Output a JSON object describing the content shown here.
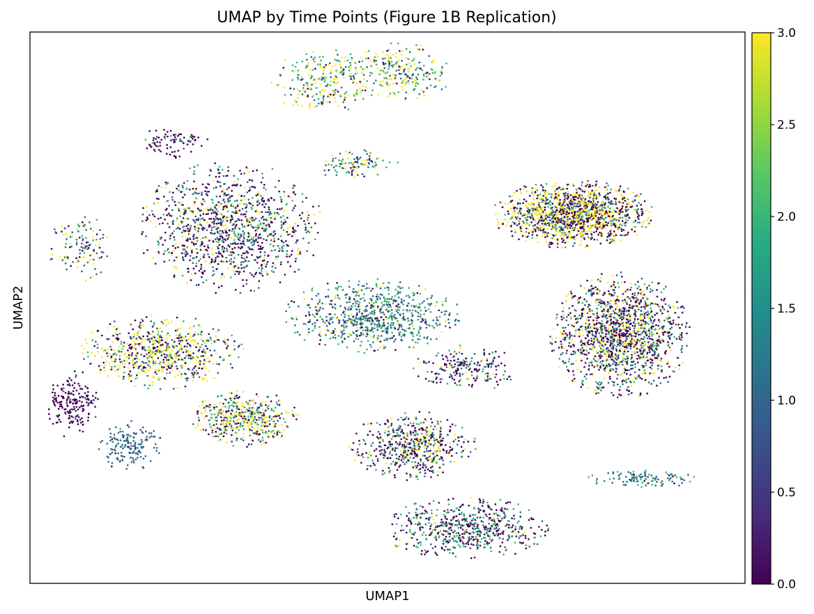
{
  "chart_data": {
    "type": "scatter",
    "title": "UMAP by Time Points (Figure 1B Replication)",
    "xlabel": "UMAP1",
    "ylabel": "UMAP2",
    "x_ticks": "none",
    "y_ticks": "none",
    "grid": false,
    "legend": "none",
    "xlim": [
      -10,
      10
    ],
    "ylim": [
      -10,
      10
    ],
    "colorbar": {
      "label": "",
      "range": [
        0.0,
        3.0
      ],
      "ticks": [
        0.0,
        0.5,
        1.0,
        1.5,
        2.0,
        2.5,
        3.0
      ],
      "tick_labels": [
        "0.0",
        "0.5",
        "1.0",
        "1.5",
        "2.0",
        "2.5",
        "3.0"
      ],
      "colormap": "viridis",
      "colormap_stops": [
        "#440154",
        "#472c7a",
        "#3b518b",
        "#2c718e",
        "#21908d",
        "#27ad81",
        "#5cc863",
        "#aadc32",
        "#fde725"
      ]
    },
    "clusters": [
      {
        "id": "top-loop",
        "cx": -1.8,
        "cy": 8.2,
        "rx": 1.4,
        "ry": 1.2,
        "count": 240,
        "mix": [
          0.08,
          0.2,
          0.32,
          0.4
        ]
      },
      {
        "id": "top-right-top",
        "cx": 0.2,
        "cy": 8.5,
        "rx": 1.6,
        "ry": 1.1,
        "count": 260,
        "mix": [
          0.08,
          0.2,
          0.32,
          0.4
        ]
      },
      {
        "id": "small-mid-top",
        "cx": -0.9,
        "cy": 5.2,
        "rx": 1.2,
        "ry": 0.5,
        "count": 110,
        "mix": [
          0.1,
          0.3,
          0.45,
          0.15
        ]
      },
      {
        "id": "purple-arc",
        "cx": -6.0,
        "cy": 6.0,
        "rx": 1.0,
        "ry": 0.55,
        "count": 85,
        "mix": [
          0.8,
          0.15,
          0.05,
          0.0
        ]
      },
      {
        "id": "left-big-oval",
        "cx": -4.4,
        "cy": 2.9,
        "rx": 2.5,
        "ry": 2.3,
        "count": 1150,
        "mix": [
          0.45,
          0.25,
          0.17,
          0.13
        ]
      },
      {
        "id": "far-left-strip",
        "cx": -8.6,
        "cy": 2.2,
        "rx": 0.9,
        "ry": 1.2,
        "count": 120,
        "mix": [
          0.15,
          0.45,
          0.1,
          0.3
        ]
      },
      {
        "id": "right-top-blob",
        "cx": 5.2,
        "cy": 3.4,
        "rx": 2.2,
        "ry": 1.2,
        "count": 1400,
        "mix": [
          0.36,
          0.12,
          0.15,
          0.37
        ]
      },
      {
        "id": "right-bottom-blob",
        "cx": 6.5,
        "cy": -1.0,
        "rx": 1.9,
        "ry": 2.2,
        "count": 1500,
        "mix": [
          0.42,
          0.26,
          0.12,
          0.2
        ]
      },
      {
        "id": "center-diagonal",
        "cx": -0.4,
        "cy": -0.3,
        "rx": 2.4,
        "ry": 1.3,
        "count": 750,
        "mix": [
          0.12,
          0.45,
          0.33,
          0.1
        ]
      },
      {
        "id": "left-lower-yellow",
        "cx": -6.3,
        "cy": -1.6,
        "rx": 2.2,
        "ry": 1.3,
        "count": 700,
        "mix": [
          0.25,
          0.18,
          0.15,
          0.42
        ]
      },
      {
        "id": "left-lower-right",
        "cx": -4.0,
        "cy": -4.0,
        "rx": 1.5,
        "ry": 1.0,
        "count": 480,
        "mix": [
          0.2,
          0.18,
          0.22,
          0.4
        ]
      },
      {
        "id": "purple-small-left",
        "cx": -8.8,
        "cy": -3.5,
        "rx": 0.7,
        "ry": 1.2,
        "count": 190,
        "mix": [
          0.92,
          0.08,
          0.0,
          0.0
        ]
      },
      {
        "id": "blue-small-left",
        "cx": -7.2,
        "cy": -5.0,
        "rx": 0.9,
        "ry": 0.9,
        "count": 160,
        "mix": [
          0.05,
          0.92,
          0.03,
          0.0
        ]
      },
      {
        "id": "center-lower",
        "cx": 0.7,
        "cy": -5.0,
        "rx": 1.7,
        "ry": 1.2,
        "count": 560,
        "mix": [
          0.45,
          0.2,
          0.2,
          0.15
        ]
      },
      {
        "id": "bottom-cluster",
        "cx": 2.2,
        "cy": -8.0,
        "rx": 2.3,
        "ry": 1.1,
        "count": 600,
        "mix": [
          0.5,
          0.15,
          0.3,
          0.05
        ]
      },
      {
        "id": "right-tail",
        "cx": 7.2,
        "cy": -6.2,
        "rx": 1.6,
        "ry": 0.3,
        "count": 110,
        "mix": [
          0.05,
          0.6,
          0.35,
          0.0
        ]
      },
      {
        "id": "center-strands",
        "cx": 2.2,
        "cy": -2.2,
        "rx": 1.5,
        "ry": 0.8,
        "count": 210,
        "mix": [
          0.45,
          0.25,
          0.25,
          0.05
        ]
      }
    ]
  }
}
